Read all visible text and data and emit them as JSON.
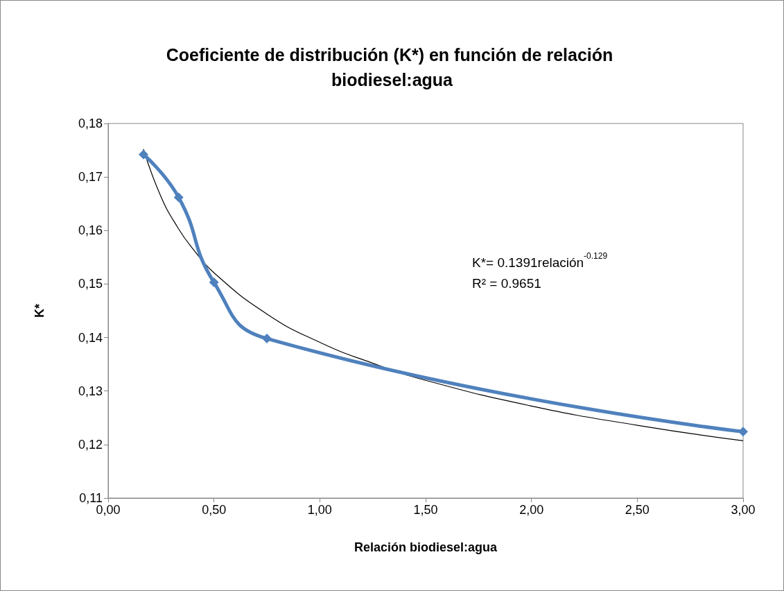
{
  "chart_data": {
    "type": "line",
    "title": "Coeficiente de distribución (K*) en función de relación biodiesel:agua",
    "xlabel": "Relación biodiesel:agua",
    "ylabel": "K*",
    "x": [
      0.167,
      0.333,
      0.5,
      0.75,
      3.0
    ],
    "series": [
      {
        "color": "#4f81bd",
        "values": [
          0.1742,
          0.1662,
          0.1503,
          0.1398,
          0.1224
        ],
        "marker": "diamond"
      },
      {
        "color": "#000000",
        "x": [
          0.167,
          0.25,
          0.333,
          0.4,
          0.5,
          0.75,
          1.0,
          1.25,
          1.5,
          2.0,
          2.5,
          3.0
        ],
        "values": [
          0.1752,
          0.1663,
          0.1603,
          0.1566,
          0.1521,
          0.1444,
          0.1391,
          0.1352,
          0.132,
          0.1272,
          0.1236,
          0.1207
        ],
        "marker": "none"
      }
    ],
    "xlim": [
      0,
      3
    ],
    "xticks": [
      {
        "value": 0,
        "label": "0,00"
      },
      {
        "value": 0.5,
        "label": "0,50"
      },
      {
        "value": 1,
        "label": "1,00"
      },
      {
        "value": 1.5,
        "label": "1,50"
      },
      {
        "value": 2,
        "label": "2,00"
      },
      {
        "value": 2.5,
        "label": "2,50"
      },
      {
        "value": 3,
        "label": "3,00"
      }
    ],
    "ylim": [
      0.11,
      0.18
    ],
    "yticks": [
      {
        "value": 0.11,
        "label": "0,11"
      },
      {
        "value": 0.12,
        "label": "0,12"
      },
      {
        "value": 0.13,
        "label": "0,13"
      },
      {
        "value": 0.14,
        "label": "0,14"
      },
      {
        "value": 0.15,
        "label": "0,15"
      },
      {
        "value": 0.16,
        "label": "0,16"
      },
      {
        "value": 0.17,
        "label": "0,17"
      },
      {
        "value": 0.18,
        "label": "0,18"
      }
    ],
    "grid": false,
    "annotations": [
      "K*= 0.1391relación$^{-0.129}$",
      "R² = 0.9651"
    ]
  }
}
